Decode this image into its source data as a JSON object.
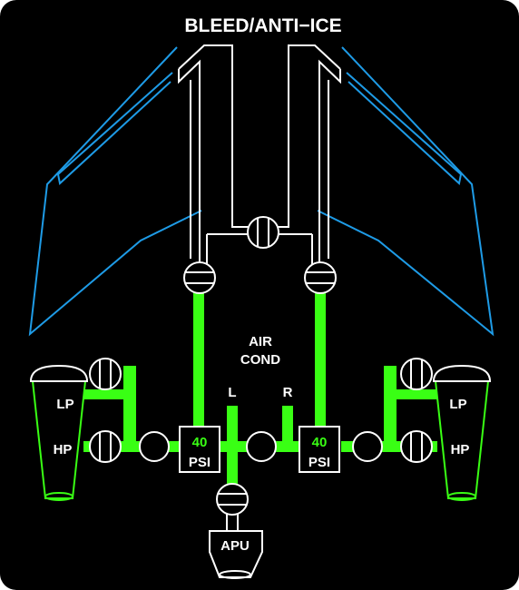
{
  "title": "BLEED/ANTI−ICE",
  "air_cond": {
    "line1": "AIR",
    "line2": "COND",
    "left": "L",
    "right": "R"
  },
  "left_engine": {
    "lp": "LP",
    "hp": "HP"
  },
  "right_engine": {
    "lp": "LP",
    "hp": "HP"
  },
  "left_duct": {
    "pressure": "40",
    "unit": "PSI"
  },
  "right_duct": {
    "pressure": "40",
    "unit": "PSI"
  },
  "apu": {
    "label": "APU"
  },
  "colors": {
    "flow": "#39ff14",
    "wing": "#1e9be6",
    "line": "#ffffff",
    "background": "#000000"
  },
  "icons": {
    "valve": "valve-icon",
    "wing": "wing-outline-icon",
    "engine": "engine-nacelle-icon",
    "apu": "apu-icon"
  }
}
